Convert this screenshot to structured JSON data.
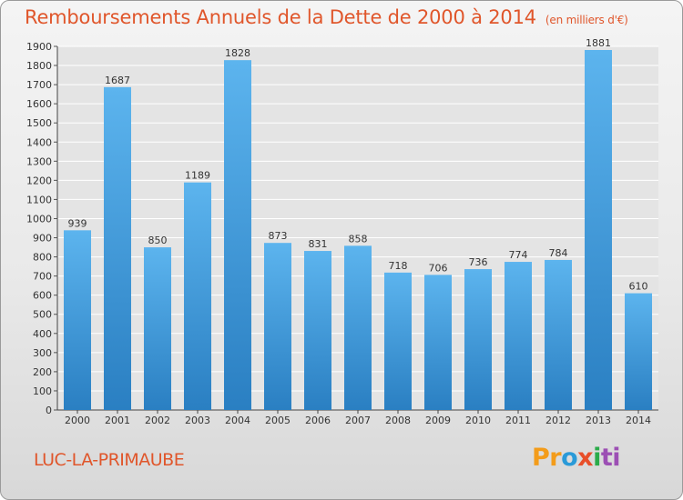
{
  "title": "Remboursements Annuels de la Dette de 2000 à 2014",
  "unit_note": "(en milliers d'€)",
  "city": "LUC-LA-PRIMAUBE",
  "logo": {
    "p1": "Pr",
    "p2": "o",
    "p3": "x",
    "p4": "i",
    "p5": "ti"
  },
  "colors": {
    "title": "#e0562b",
    "bar_light": "#5cb4ee",
    "bar_dark": "#2a7fc2",
    "grid": "#ffffff"
  },
  "chart_data": {
    "type": "bar",
    "title": "Remboursements Annuels de la Dette de 2000 à 2014",
    "ylabel": "en milliers d'€",
    "xlabel": "",
    "categories": [
      "2000",
      "2001",
      "2002",
      "2003",
      "2004",
      "2005",
      "2006",
      "2007",
      "2008",
      "2009",
      "2010",
      "2011",
      "2012",
      "2013",
      "2014"
    ],
    "values": [
      939,
      1687,
      850,
      1189,
      1828,
      873,
      831,
      858,
      718,
      706,
      736,
      774,
      784,
      1881,
      610
    ],
    "ylim": [
      0,
      1900
    ],
    "yticks": [
      0,
      100,
      200,
      300,
      400,
      500,
      600,
      700,
      800,
      900,
      1000,
      1100,
      1200,
      1300,
      1400,
      1500,
      1600,
      1700,
      1800,
      1900
    ],
    "grid": true
  }
}
